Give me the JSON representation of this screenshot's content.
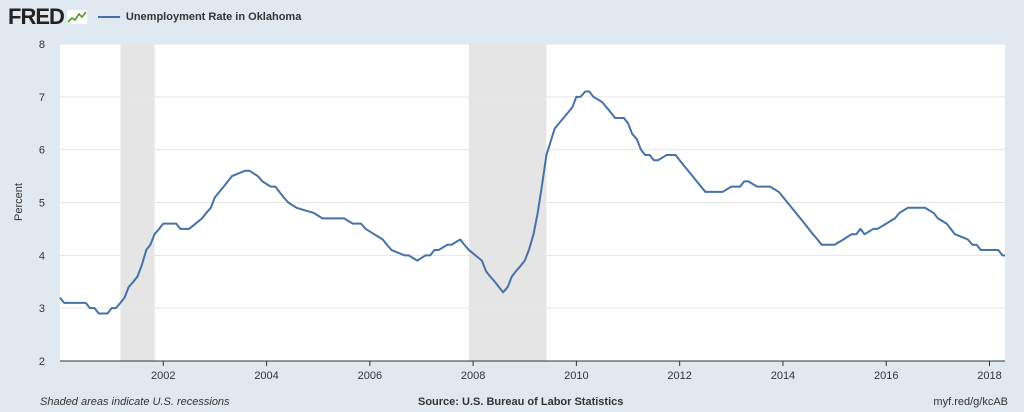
{
  "header": {
    "logo_text": "FRED",
    "legend_label": "Unemployment Rate in Oklahoma"
  },
  "footer": {
    "recession_note": "Shaded areas indicate U.S. recessions",
    "source": "Source: U.S. Bureau of Labor Statistics",
    "short_url": "myf.red/g/kcAB"
  },
  "colors": {
    "background": "#e1e9f0",
    "plot_background": "#ffffff",
    "line": "#4572a7",
    "recession": "#e5e5e5",
    "grid": "#e6e6e6"
  },
  "chart_data": {
    "type": "line",
    "title": "",
    "xlabel": "",
    "ylabel": "Percent",
    "xlim": [
      2000.0,
      2018.3
    ],
    "ylim": [
      2,
      8
    ],
    "yticks": [
      2,
      3,
      4,
      5,
      6,
      7,
      8
    ],
    "xticks": [
      2002,
      2004,
      2006,
      2008,
      2010,
      2012,
      2014,
      2016,
      2018
    ],
    "grid": true,
    "legend_position": "top-left",
    "recessions": [
      [
        2001.17,
        2001.83
      ],
      [
        2007.92,
        2009.42
      ]
    ],
    "series": [
      {
        "name": "Unemployment Rate in Oklahoma",
        "x": [
          2000.0,
          2000.08,
          2000.5,
          2000.58,
          2000.67,
          2000.75,
          2000.83,
          2000.92,
          2001.0,
          2001.08,
          2001.17,
          2001.25,
          2001.33,
          2001.42,
          2001.5,
          2001.58,
          2001.67,
          2001.75,
          2001.83,
          2001.92,
          2002.0,
          2002.25,
          2002.33,
          2002.5,
          2002.75,
          2002.83,
          2002.92,
          2003.0,
          2003.17,
          2003.33,
          2003.58,
          2003.67,
          2003.83,
          2003.92,
          2004.08,
          2004.17,
          2004.33,
          2004.42,
          2004.58,
          2004.92,
          2005.08,
          2005.25,
          2005.33,
          2005.5,
          2005.67,
          2005.83,
          2005.92,
          2006.25,
          2006.33,
          2006.42,
          2006.67,
          2006.75,
          2006.92,
          2007.08,
          2007.17,
          2007.25,
          2007.33,
          2007.5,
          2007.58,
          2007.75,
          2007.83,
          2007.92,
          2008.17,
          2008.25,
          2008.33,
          2008.42,
          2008.5,
          2008.58,
          2008.67,
          2008.75,
          2008.83,
          2008.92,
          2009.0,
          2009.08,
          2009.17,
          2009.25,
          2009.33,
          2009.42,
          2009.58,
          2009.75,
          2009.92,
          2010.0,
          2010.08,
          2010.17,
          2010.25,
          2010.33,
          2010.5,
          2010.67,
          2010.75,
          2010.92,
          2011.0,
          2011.08,
          2011.17,
          2011.25,
          2011.33,
          2011.42,
          2011.5,
          2011.58,
          2011.75,
          2011.92,
          2012.08,
          2012.25,
          2012.33,
          2012.5,
          2012.75,
          2012.83,
          2013.0,
          2013.08,
          2013.17,
          2013.25,
          2013.33,
          2013.5,
          2013.58,
          2013.75,
          2013.92,
          2014.17,
          2014.42,
          2014.58,
          2014.67,
          2014.75,
          2015.0,
          2015.17,
          2015.33,
          2015.42,
          2015.5,
          2015.58,
          2015.75,
          2015.83,
          2016.0,
          2016.17,
          2016.25,
          2016.42,
          2016.58,
          2016.75,
          2016.92,
          2017.0,
          2017.17,
          2017.33,
          2017.58,
          2017.67,
          2017.75,
          2017.83,
          2018.17,
          2018.25,
          2018.3
        ],
        "y": [
          3.2,
          3.1,
          3.1,
          3.0,
          3.0,
          2.9,
          2.9,
          2.9,
          3.0,
          3.0,
          3.1,
          3.2,
          3.4,
          3.5,
          3.6,
          3.8,
          4.1,
          4.2,
          4.4,
          4.5,
          4.6,
          4.6,
          4.5,
          4.5,
          4.7,
          4.8,
          4.9,
          5.1,
          5.3,
          5.5,
          5.6,
          5.6,
          5.5,
          5.4,
          5.3,
          5.3,
          5.1,
          5.0,
          4.9,
          4.8,
          4.7,
          4.7,
          4.7,
          4.7,
          4.6,
          4.6,
          4.5,
          4.3,
          4.2,
          4.1,
          4.0,
          4.0,
          3.9,
          4.0,
          4.0,
          4.1,
          4.1,
          4.2,
          4.2,
          4.3,
          4.2,
          4.1,
          3.9,
          3.7,
          3.6,
          3.5,
          3.4,
          3.3,
          3.4,
          3.6,
          3.7,
          3.8,
          3.9,
          4.1,
          4.4,
          4.8,
          5.3,
          5.9,
          6.4,
          6.6,
          6.8,
          7.0,
          7.0,
          7.1,
          7.1,
          7.0,
          6.9,
          6.7,
          6.6,
          6.6,
          6.5,
          6.3,
          6.2,
          6.0,
          5.9,
          5.9,
          5.8,
          5.8,
          5.9,
          5.9,
          5.7,
          5.5,
          5.4,
          5.2,
          5.2,
          5.2,
          5.3,
          5.3,
          5.3,
          5.4,
          5.4,
          5.3,
          5.3,
          5.3,
          5.2,
          4.9,
          4.6,
          4.4,
          4.3,
          4.2,
          4.2,
          4.3,
          4.4,
          4.4,
          4.5,
          4.4,
          4.5,
          4.5,
          4.6,
          4.7,
          4.8,
          4.9,
          4.9,
          4.9,
          4.8,
          4.7,
          4.6,
          4.4,
          4.3,
          4.2,
          4.2,
          4.1,
          4.1,
          4.0,
          4.0
        ]
      }
    ]
  }
}
